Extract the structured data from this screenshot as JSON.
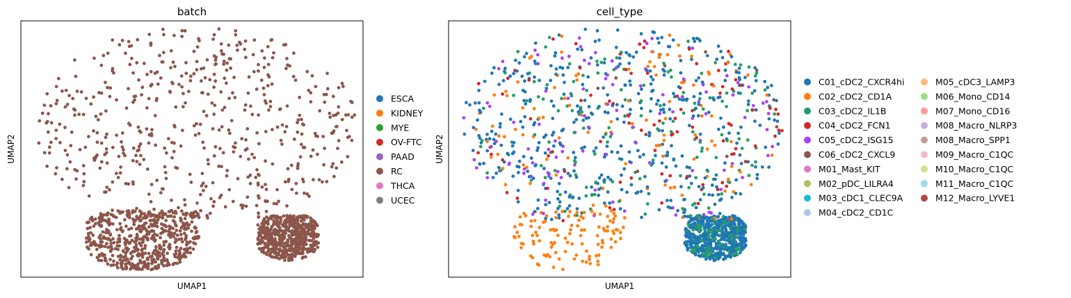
{
  "chart_data": [
    {
      "type": "scatter",
      "title": "batch",
      "xlabel": "UMAP1",
      "ylabel": "UMAP2",
      "xlim": [
        0,
        10
      ],
      "ylim": [
        0,
        10
      ],
      "grid": false,
      "ticks": false,
      "legend_placement": "right",
      "legend_columns": 1,
      "categories": [
        {
          "name": "ESCA",
          "color": "#1f77b4"
        },
        {
          "name": "KIDNEY",
          "color": "#ff7f0e"
        },
        {
          "name": "MYE",
          "color": "#2ca02c"
        },
        {
          "name": "OV-FTC",
          "color": "#d62728"
        },
        {
          "name": "PAAD",
          "color": "#9467bd"
        },
        {
          "name": "RC",
          "color": "#8c564b"
        },
        {
          "name": "THCA",
          "color": "#e377c2"
        },
        {
          "name": "UCEC",
          "color": "#7f7f7f"
        }
      ],
      "point_groups": [
        {
          "category": "RC",
          "approx_count": 1700,
          "regions": [
            [
              0.4,
              2.2,
              9.8,
              9.7
            ],
            [
              1.9,
              0.2,
              5.2,
              2.6
            ],
            [
              6.9,
              0.6,
              8.7,
              2.4
            ]
          ]
        }
      ]
    },
    {
      "type": "scatter",
      "title": "cell_type",
      "xlabel": "UMAP1",
      "ylabel": "UMAP2",
      "xlim": [
        0,
        10
      ],
      "ylim": [
        0,
        10
      ],
      "grid": false,
      "ticks": false,
      "legend_placement": "right",
      "legend_columns": 2,
      "categories": [
        {
          "name": "C01_cDC2_CXCR4hi",
          "color": "#1f77b4"
        },
        {
          "name": "C02_cDC2_CD1A",
          "color": "#ff7f0e"
        },
        {
          "name": "C03_cDC2_IL1B",
          "color": "#279e68"
        },
        {
          "name": "C04_cDC2_FCN1",
          "color": "#d62728"
        },
        {
          "name": "C05_cDC2_ISG15",
          "color": "#aa40fc"
        },
        {
          "name": "C06_cDC2_CXCL9",
          "color": "#8c564b"
        },
        {
          "name": "M01_Mast_KIT",
          "color": "#e377c2"
        },
        {
          "name": "M02_pDC_LILRA4",
          "color": "#b5bd61"
        },
        {
          "name": "M03_cDC1_CLEC9A",
          "color": "#17becf"
        },
        {
          "name": "M04_cDC2_CD1C",
          "color": "#aec7e8"
        },
        {
          "name": "M05_cDC3_LAMP3",
          "color": "#ffbb78"
        },
        {
          "name": "M06_Mono_CD14",
          "color": "#98df8a"
        },
        {
          "name": "M07_Mono_CD16",
          "color": "#ff9896"
        },
        {
          "name": "M08_Macro_NLRP3",
          "color": "#c5b0d5"
        },
        {
          "name": "M08_Macro_SPP1",
          "color": "#c49c94"
        },
        {
          "name": "M09_Macro_C1QC",
          "color": "#f7b6d2"
        },
        {
          "name": "M10_Macro_C1QC",
          "color": "#dbdb8d"
        },
        {
          "name": "M11_Macro_C1QC",
          "color": "#9edae5"
        },
        {
          "name": "M12_Macro_LYVE1",
          "color": "#ad494a"
        }
      ],
      "point_groups": [
        {
          "category": "C01_cDC2_CXCR4hi",
          "approx_count": 900,
          "regions": [
            [
              0.4,
              2.2,
              9.8,
              9.7
            ],
            [
              6.9,
              0.6,
              8.7,
              2.4
            ]
          ]
        },
        {
          "category": "C03_cDC2_IL1B",
          "approx_count": 320,
          "regions": [
            [
              0.4,
              2.2,
              9.8,
              9.7
            ],
            [
              6.9,
              0.6,
              8.7,
              2.4
            ]
          ]
        },
        {
          "category": "C02_cDC2_CD1A",
          "approx_count": 230,
          "regions": [
            [
              1.9,
              0.2,
              5.2,
              2.6
            ],
            [
              0.4,
              2.2,
              9.8,
              9.7
            ]
          ]
        },
        {
          "category": "C05_cDC2_ISG15",
          "approx_count": 110,
          "regions": [
            [
              0.4,
              2.2,
              9.8,
              9.7
            ]
          ]
        },
        {
          "category": "C04_cDC2_FCN1",
          "approx_count": 90,
          "regions": [
            [
              0.4,
              2.2,
              9.8,
              9.7
            ]
          ]
        },
        {
          "category": "C06_cDC2_CXCL9",
          "approx_count": 12,
          "regions": [
            [
              0.4,
              2.2,
              9.8,
              9.7
            ]
          ]
        }
      ]
    }
  ]
}
